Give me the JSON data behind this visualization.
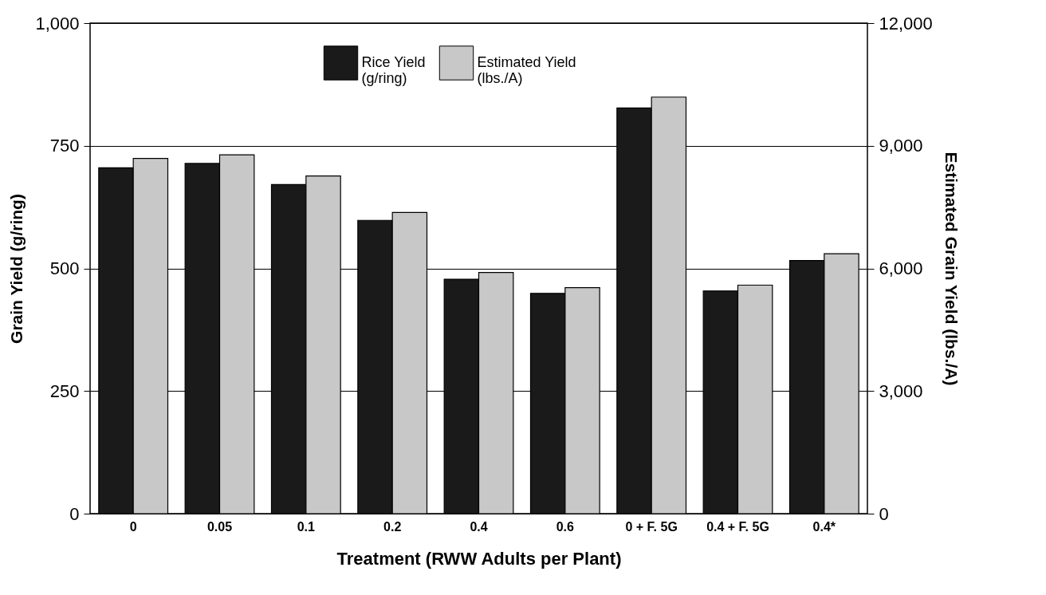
{
  "chart_data": {
    "type": "bar",
    "xlabel": "Treatment (RWW Adults per Plant)",
    "ylabel": "Grain Yield (g/ring)",
    "y2label": "Estimated Grain Yield (lbs./A)",
    "categories": [
      "0",
      "0.05",
      "0.1",
      "0.2",
      "0.4",
      "0.6",
      "0 + F. 5G",
      "0.4 + F. 5G",
      "0.4*"
    ],
    "series": [
      {
        "name": "Rice Yield (g/ring)",
        "color": "#1a1a1a",
        "values": [
          705,
          714,
          671,
          598,
          478,
          449,
          827,
          454,
          516
        ]
      },
      {
        "name": "Estimated Yield (lbs./A)",
        "color": "#c8c8c8",
        "axis": "y2",
        "values": [
          8690,
          8780,
          8260,
          7370,
          5900,
          5530,
          10190,
          5590,
          6360
        ]
      }
    ],
    "ylim": [
      0,
      1000
    ],
    "yticks": [
      0,
      250,
      500,
      750,
      {
        "value": 1000,
        "label": "1,000"
      }
    ],
    "y2lim": [
      0,
      12000
    ],
    "y2ticks": [
      0,
      {
        "value": 3000,
        "label": "3,000"
      },
      {
        "value": 6000,
        "label": "6,000"
      },
      {
        "value": 9000,
        "label": "9,000"
      },
      {
        "value": 12000,
        "label": "12,000"
      }
    ],
    "grid": "y",
    "legend": "top"
  }
}
